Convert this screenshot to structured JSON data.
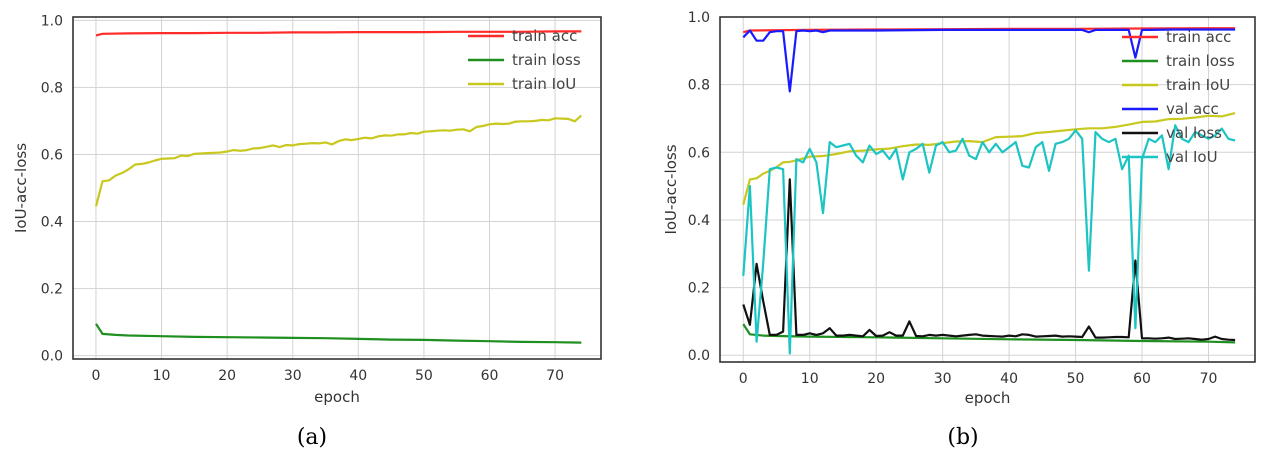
{
  "colors": {
    "train_acc": "#ff2a2a",
    "train_loss": "#1f8f1f",
    "train_iou": "#c8c81e",
    "val_acc": "#1a1aff",
    "val_loss": "#111111",
    "val_iou": "#1cc4c4"
  },
  "chart_data": [
    {
      "type": "line",
      "caption": "(a)",
      "xlabel": "epoch",
      "ylabel": "IoU-acc-loss",
      "xlim": [
        -3.5,
        77
      ],
      "ylim": [
        -0.01,
        1.01
      ],
      "grid": true,
      "legend_position": "top-right",
      "x_ticks": [
        "0",
        "10",
        "20",
        "30",
        "40",
        "50",
        "60",
        "70"
      ],
      "y_ticks": [
        "0.0",
        "0.2",
        "0.4",
        "0.6",
        "0.8",
        "1.0"
      ],
      "series": [
        {
          "name": "train acc",
          "color": "train_acc",
          "x": [
            0,
            1,
            5,
            10,
            15,
            20,
            25,
            30,
            35,
            40,
            45,
            50,
            55,
            60,
            65,
            70,
            74
          ],
          "y": [
            0.955,
            0.96,
            0.961,
            0.962,
            0.962,
            0.963,
            0.963,
            0.964,
            0.964,
            0.965,
            0.965,
            0.965,
            0.966,
            0.966,
            0.966,
            0.967,
            0.967
          ]
        },
        {
          "name": "train loss",
          "color": "train_loss",
          "x": [
            0,
            1,
            3,
            5,
            10,
            15,
            20,
            25,
            30,
            35,
            40,
            45,
            50,
            55,
            60,
            65,
            70,
            74
          ],
          "y": [
            0.095,
            0.065,
            0.062,
            0.06,
            0.058,
            0.056,
            0.055,
            0.054,
            0.053,
            0.052,
            0.05,
            0.048,
            0.047,
            0.045,
            0.043,
            0.041,
            0.04,
            0.039
          ]
        },
        {
          "name": "train IoU",
          "color": "train_iou",
          "x": [
            0,
            1,
            2,
            3,
            4,
            5,
            6,
            7,
            8,
            9,
            10,
            11,
            12,
            13,
            14,
            15,
            16,
            17,
            18,
            19,
            20,
            21,
            22,
            23,
            24,
            25,
            26,
            27,
            28,
            29,
            30,
            31,
            32,
            33,
            34,
            35,
            36,
            37,
            38,
            39,
            40,
            41,
            42,
            43,
            44,
            45,
            46,
            47,
            48,
            49,
            50,
            51,
            52,
            53,
            54,
            55,
            56,
            57,
            58,
            59,
            60,
            61,
            62,
            63,
            64,
            65,
            66,
            67,
            68,
            69,
            70,
            71,
            72,
            73,
            74
          ],
          "y": [
            0.445,
            0.52,
            0.523,
            0.537,
            0.545,
            0.556,
            0.57,
            0.572,
            0.576,
            0.582,
            0.587,
            0.588,
            0.589,
            0.597,
            0.595,
            0.602,
            0.603,
            0.604,
            0.605,
            0.606,
            0.609,
            0.613,
            0.611,
            0.613,
            0.618,
            0.619,
            0.623,
            0.627,
            0.622,
            0.628,
            0.627,
            0.631,
            0.632,
            0.634,
            0.633,
            0.636,
            0.63,
            0.64,
            0.645,
            0.643,
            0.646,
            0.65,
            0.648,
            0.654,
            0.657,
            0.656,
            0.66,
            0.66,
            0.664,
            0.662,
            0.668,
            0.669,
            0.671,
            0.672,
            0.671,
            0.674,
            0.675,
            0.669,
            0.682,
            0.685,
            0.69,
            0.692,
            0.691,
            0.692,
            0.698,
            0.699,
            0.699,
            0.7,
            0.703,
            0.702,
            0.708,
            0.707,
            0.706,
            0.699,
            0.716
          ]
        }
      ]
    },
    {
      "type": "line",
      "caption": "(b)",
      "xlabel": "epoch",
      "ylabel": "IoU-acc-loss",
      "xlim": [
        -3.5,
        77
      ],
      "ylim": [
        -0.02,
        1.0
      ],
      "grid": true,
      "legend_position": "top-right",
      "x_ticks": [
        "0",
        "10",
        "20",
        "30",
        "40",
        "50",
        "60",
        "70"
      ],
      "y_ticks": [
        "0.0",
        "0.2",
        "0.4",
        "0.6",
        "0.8",
        "1.0"
      ],
      "series": [
        {
          "name": "train acc",
          "color": "train_acc",
          "x": [
            0,
            1,
            5,
            10,
            20,
            30,
            40,
            50,
            60,
            70,
            74
          ],
          "y": [
            0.955,
            0.96,
            0.961,
            0.962,
            0.963,
            0.964,
            0.965,
            0.965,
            0.966,
            0.967,
            0.967
          ]
        },
        {
          "name": "train loss",
          "color": "train_loss",
          "x": [
            0,
            1,
            3,
            5,
            10,
            20,
            30,
            40,
            50,
            60,
            70,
            74
          ],
          "y": [
            0.092,
            0.062,
            0.058,
            0.057,
            0.055,
            0.053,
            0.05,
            0.047,
            0.045,
            0.042,
            0.04,
            0.038
          ]
        },
        {
          "name": "train IoU",
          "color": "train_iou",
          "x": [
            0,
            1,
            2,
            3,
            4,
            5,
            6,
            7,
            8,
            9,
            10,
            12,
            14,
            16,
            18,
            20,
            22,
            24,
            26,
            28,
            30,
            32,
            34,
            36,
            38,
            40,
            42,
            44,
            46,
            48,
            50,
            52,
            54,
            56,
            58,
            60,
            62,
            64,
            66,
            68,
            70,
            72,
            74
          ],
          "y": [
            0.445,
            0.52,
            0.523,
            0.537,
            0.545,
            0.556,
            0.57,
            0.572,
            0.576,
            0.582,
            0.587,
            0.589,
            0.595,
            0.603,
            0.605,
            0.609,
            0.611,
            0.618,
            0.623,
            0.622,
            0.627,
            0.632,
            0.633,
            0.63,
            0.645,
            0.646,
            0.648,
            0.657,
            0.66,
            0.664,
            0.668,
            0.671,
            0.671,
            0.675,
            0.682,
            0.69,
            0.691,
            0.698,
            0.699,
            0.703,
            0.708,
            0.706,
            0.716
          ]
        },
        {
          "name": "val acc",
          "color": "val_acc",
          "x": [
            0,
            1,
            2,
            3,
            4,
            5,
            6,
            7,
            8,
            9,
            10,
            11,
            12,
            13,
            14,
            20,
            30,
            40,
            50,
            51,
            52,
            53,
            57,
            58,
            59,
            60,
            61,
            65,
            70,
            74
          ],
          "y": [
            0.94,
            0.96,
            0.93,
            0.93,
            0.955,
            0.958,
            0.958,
            0.78,
            0.958,
            0.96,
            0.958,
            0.96,
            0.955,
            0.96,
            0.96,
            0.96,
            0.962,
            0.962,
            0.962,
            0.962,
            0.955,
            0.962,
            0.962,
            0.962,
            0.88,
            0.962,
            0.962,
            0.963,
            0.963,
            0.963
          ]
        },
        {
          "name": "val loss",
          "color": "val_loss",
          "x": [
            0,
            1,
            2,
            3,
            4,
            5,
            6,
            7,
            8,
            9,
            10,
            11,
            12,
            13,
            14,
            15,
            16,
            17,
            18,
            19,
            20,
            21,
            22,
            23,
            24,
            25,
            26,
            27,
            28,
            29,
            30,
            31,
            32,
            33,
            34,
            35,
            36,
            37,
            38,
            39,
            40,
            41,
            42,
            43,
            44,
            45,
            46,
            47,
            48,
            49,
            50,
            51,
            52,
            53,
            54,
            55,
            56,
            57,
            58,
            59,
            60,
            61,
            62,
            63,
            64,
            65,
            66,
            67,
            68,
            69,
            70,
            71,
            72,
            73,
            74
          ],
          "y": [
            0.15,
            0.09,
            0.27,
            0.16,
            0.06,
            0.06,
            0.07,
            0.52,
            0.06,
            0.06,
            0.065,
            0.06,
            0.065,
            0.08,
            0.058,
            0.058,
            0.06,
            0.058,
            0.056,
            0.075,
            0.057,
            0.058,
            0.068,
            0.058,
            0.058,
            0.1,
            0.057,
            0.056,
            0.06,
            0.058,
            0.06,
            0.058,
            0.056,
            0.058,
            0.06,
            0.062,
            0.058,
            0.057,
            0.056,
            0.055,
            0.058,
            0.056,
            0.062,
            0.06,
            0.055,
            0.056,
            0.057,
            0.058,
            0.055,
            0.056,
            0.055,
            0.054,
            0.085,
            0.052,
            0.052,
            0.053,
            0.054,
            0.054,
            0.053,
            0.28,
            0.05,
            0.05,
            0.049,
            0.05,
            0.052,
            0.048,
            0.049,
            0.05,
            0.048,
            0.046,
            0.048,
            0.055,
            0.048,
            0.046,
            0.045
          ]
        },
        {
          "name": "val IoU",
          "color": "val_iou",
          "x": [
            0,
            1,
            2,
            3,
            4,
            5,
            6,
            7,
            8,
            9,
            10,
            11,
            12,
            13,
            14,
            15,
            16,
            17,
            18,
            19,
            20,
            21,
            22,
            23,
            24,
            25,
            26,
            27,
            28,
            29,
            30,
            31,
            32,
            33,
            34,
            35,
            36,
            37,
            38,
            39,
            40,
            41,
            42,
            43,
            44,
            45,
            46,
            47,
            48,
            49,
            50,
            51,
            52,
            53,
            54,
            55,
            56,
            57,
            58,
            59,
            60,
            61,
            62,
            63,
            64,
            65,
            66,
            67,
            68,
            69,
            70,
            71,
            72,
            73,
            74
          ],
          "y": [
            0.235,
            0.5,
            0.04,
            0.27,
            0.55,
            0.555,
            0.55,
            0.005,
            0.58,
            0.57,
            0.61,
            0.57,
            0.42,
            0.63,
            0.615,
            0.62,
            0.625,
            0.59,
            0.57,
            0.62,
            0.595,
            0.605,
            0.58,
            0.61,
            0.52,
            0.6,
            0.61,
            0.625,
            0.54,
            0.62,
            0.63,
            0.6,
            0.605,
            0.64,
            0.59,
            0.58,
            0.63,
            0.6,
            0.625,
            0.6,
            0.615,
            0.63,
            0.56,
            0.555,
            0.615,
            0.63,
            0.545,
            0.625,
            0.63,
            0.64,
            0.665,
            0.64,
            0.25,
            0.66,
            0.64,
            0.63,
            0.64,
            0.55,
            0.59,
            0.08,
            0.58,
            0.64,
            0.63,
            0.65,
            0.55,
            0.68,
            0.64,
            0.63,
            0.66,
            0.65,
            0.64,
            0.65,
            0.67,
            0.64,
            0.635
          ]
        }
      ]
    }
  ]
}
